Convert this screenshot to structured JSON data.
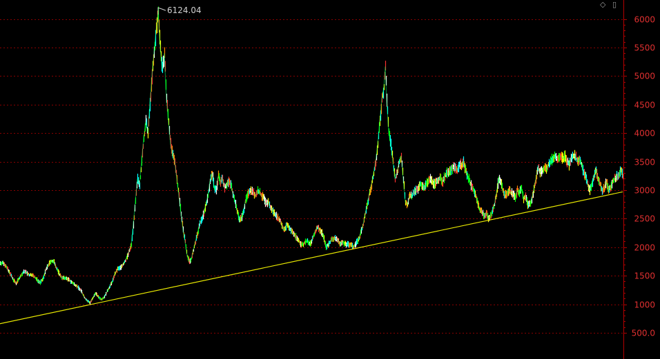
{
  "chart_data": {
    "type": "line",
    "title": "",
    "xlabel": "",
    "ylabel": "",
    "ylim": [
      350,
      6300
    ],
    "grid": true,
    "yticks": [
      {
        "value": 500,
        "label": "500.0"
      },
      {
        "value": 1000,
        "label": "1000"
      },
      {
        "value": 1500,
        "label": "1500"
      },
      {
        "value": 2000,
        "label": "2000"
      },
      {
        "value": 2500,
        "label": "2500"
      },
      {
        "value": 3000,
        "label": "3000"
      },
      {
        "value": 3500,
        "label": "3500"
      },
      {
        "value": 4000,
        "label": "4000"
      },
      {
        "value": 4500,
        "label": "4500"
      },
      {
        "value": 5000,
        "label": "5000"
      },
      {
        "value": 5500,
        "label": "5500"
      },
      {
        "value": 6000,
        "label": "6000"
      }
    ],
    "series": [
      {
        "points": [
          [
            0,
            1720
          ],
          [
            3,
            1730
          ],
          [
            8,
            1680
          ],
          [
            12,
            1580
          ],
          [
            16,
            1500
          ],
          [
            19,
            1420
          ],
          [
            23,
            1370
          ],
          [
            27,
            1450
          ],
          [
            31,
            1520
          ],
          [
            35,
            1580
          ],
          [
            38,
            1550
          ],
          [
            42,
            1510
          ],
          [
            46,
            1520
          ],
          [
            50,
            1470
          ],
          [
            54,
            1420
          ],
          [
            58,
            1380
          ],
          [
            62,
            1450
          ],
          [
            66,
            1600
          ],
          [
            70,
            1700
          ],
          [
            74,
            1760
          ],
          [
            78,
            1740
          ],
          [
            82,
            1620
          ],
          [
            86,
            1520
          ],
          [
            90,
            1460
          ],
          [
            94,
            1460
          ],
          [
            98,
            1440
          ],
          [
            102,
            1400
          ],
          [
            106,
            1360
          ],
          [
            110,
            1330
          ],
          [
            114,
            1280
          ],
          [
            118,
            1220
          ],
          [
            122,
            1120
          ],
          [
            126,
            1060
          ],
          [
            130,
            1030
          ],
          [
            134,
            1100
          ],
          [
            138,
            1200
          ],
          [
            142,
            1130
          ],
          [
            146,
            1090
          ],
          [
            150,
            1120
          ],
          [
            154,
            1200
          ],
          [
            158,
            1300
          ],
          [
            162,
            1390
          ],
          [
            166,
            1530
          ],
          [
            170,
            1620
          ],
          [
            174,
            1640
          ],
          [
            178,
            1700
          ],
          [
            182,
            1780
          ],
          [
            186,
            1900
          ],
          [
            190,
            2050
          ],
          [
            193,
            2400
          ],
          [
            196,
            2800
          ],
          [
            199,
            3200
          ],
          [
            202,
            3100
          ],
          [
            205,
            3500
          ],
          [
            208,
            3900
          ],
          [
            211,
            4200
          ],
          [
            214,
            4000
          ],
          [
            217,
            4500
          ],
          [
            220,
            5000
          ],
          [
            223,
            5400
          ],
          [
            226,
            5800
          ],
          [
            229,
            6124
          ],
          [
            232,
            5500
          ],
          [
            235,
            5100
          ],
          [
            238,
            5400
          ],
          [
            241,
            4600
          ],
          [
            244,
            4200
          ],
          [
            247,
            3800
          ],
          [
            250,
            3600
          ],
          [
            253,
            3500
          ],
          [
            256,
            3200
          ],
          [
            259,
            2900
          ],
          [
            262,
            2600
          ],
          [
            265,
            2300
          ],
          [
            268,
            2100
          ],
          [
            271,
            1850
          ],
          [
            274,
            1750
          ],
          [
            277,
            1800
          ],
          [
            280,
            1950
          ],
          [
            283,
            2100
          ],
          [
            286,
            2250
          ],
          [
            289,
            2400
          ],
          [
            292,
            2500
          ],
          [
            295,
            2600
          ],
          [
            298,
            2750
          ],
          [
            301,
            2900
          ],
          [
            304,
            3150
          ],
          [
            307,
            3300
          ],
          [
            310,
            3050
          ],
          [
            313,
            3000
          ],
          [
            316,
            3250
          ],
          [
            319,
            3150
          ],
          [
            322,
            3200
          ],
          [
            325,
            3050
          ],
          [
            328,
            3100
          ],
          [
            331,
            3150
          ],
          [
            334,
            3100
          ],
          [
            337,
            2950
          ],
          [
            340,
            2800
          ],
          [
            343,
            2650
          ],
          [
            346,
            2500
          ],
          [
            349,
            2500
          ],
          [
            352,
            2600
          ],
          [
            355,
            2800
          ],
          [
            358,
            2900
          ],
          [
            361,
            3000
          ],
          [
            364,
            3000
          ],
          [
            367,
            2950
          ],
          [
            370,
            2900
          ],
          [
            373,
            3000
          ],
          [
            376,
            2950
          ],
          [
            379,
            2900
          ],
          [
            382,
            2850
          ],
          [
            385,
            2750
          ],
          [
            388,
            2800
          ],
          [
            391,
            2700
          ],
          [
            394,
            2650
          ],
          [
            397,
            2600
          ],
          [
            400,
            2550
          ],
          [
            403,
            2500
          ],
          [
            406,
            2450
          ],
          [
            409,
            2350
          ],
          [
            412,
            2300
          ],
          [
            415,
            2400
          ],
          [
            418,
            2350
          ],
          [
            421,
            2300
          ],
          [
            424,
            2250
          ],
          [
            427,
            2200
          ],
          [
            430,
            2150
          ],
          [
            433,
            2100
          ],
          [
            436,
            2050
          ],
          [
            439,
            2050
          ],
          [
            442,
            2100
          ],
          [
            445,
            2100
          ],
          [
            448,
            2050
          ],
          [
            451,
            2100
          ],
          [
            454,
            2200
          ],
          [
            457,
            2300
          ],
          [
            460,
            2350
          ],
          [
            463,
            2300
          ],
          [
            466,
            2250
          ],
          [
            469,
            2150
          ],
          [
            472,
            2000
          ],
          [
            475,
            2050
          ],
          [
            478,
            2100
          ],
          [
            481,
            2150
          ],
          [
            484,
            2150
          ],
          [
            487,
            2150
          ],
          [
            490,
            2100
          ],
          [
            493,
            2050
          ],
          [
            496,
            2100
          ],
          [
            499,
            2050
          ],
          [
            502,
            2050
          ],
          [
            505,
            2050
          ],
          [
            508,
            2050
          ],
          [
            511,
            2000
          ],
          [
            514,
            2050
          ],
          [
            517,
            2100
          ],
          [
            520,
            2150
          ],
          [
            523,
            2300
          ],
          [
            526,
            2400
          ],
          [
            529,
            2600
          ],
          [
            532,
            2750
          ],
          [
            535,
            2950
          ],
          [
            538,
            3100
          ],
          [
            541,
            3300
          ],
          [
            544,
            3500
          ],
          [
            547,
            3800
          ],
          [
            550,
            4200
          ],
          [
            553,
            4600
          ],
          [
            556,
            4800
          ],
          [
            558,
            5166
          ],
          [
            560,
            4600
          ],
          [
            563,
            4000
          ],
          [
            566,
            3800
          ],
          [
            569,
            3500
          ],
          [
            572,
            3200
          ],
          [
            575,
            3300
          ],
          [
            578,
            3500
          ],
          [
            581,
            3600
          ],
          [
            584,
            3200
          ],
          [
            587,
            2800
          ],
          [
            590,
            2750
          ],
          [
            593,
            2900
          ],
          [
            596,
            2900
          ],
          [
            599,
            2950
          ],
          [
            602,
            3000
          ],
          [
            605,
            3000
          ],
          [
            608,
            3100
          ],
          [
            611,
            3100
          ],
          [
            614,
            3050
          ],
          [
            617,
            3100
          ],
          [
            620,
            3150
          ],
          [
            623,
            3200
          ],
          [
            626,
            3150
          ],
          [
            629,
            3100
          ],
          [
            632,
            3150
          ],
          [
            635,
            3200
          ],
          [
            638,
            3200
          ],
          [
            641,
            3150
          ],
          [
            644,
            3250
          ],
          [
            647,
            3300
          ],
          [
            650,
            3300
          ],
          [
            653,
            3350
          ],
          [
            656,
            3400
          ],
          [
            659,
            3400
          ],
          [
            662,
            3350
          ],
          [
            665,
            3450
          ],
          [
            668,
            3450
          ],
          [
            671,
            3500
          ],
          [
            674,
            3350
          ],
          [
            677,
            3250
          ],
          [
            680,
            3150
          ],
          [
            683,
            3050
          ],
          [
            686,
            3000
          ],
          [
            689,
            2900
          ],
          [
            692,
            2750
          ],
          [
            695,
            2650
          ],
          [
            698,
            2600
          ],
          [
            701,
            2550
          ],
          [
            704,
            2600
          ],
          [
            707,
            2500
          ],
          [
            710,
            2550
          ],
          [
            713,
            2650
          ],
          [
            716,
            2750
          ],
          [
            719,
            2950
          ],
          [
            722,
            3200
          ],
          [
            725,
            3150
          ],
          [
            728,
            3000
          ],
          [
            731,
            2900
          ],
          [
            734,
            2950
          ],
          [
            737,
            3000
          ],
          [
            740,
            2950
          ],
          [
            743,
            2950
          ],
          [
            746,
            2850
          ],
          [
            749,
            3000
          ],
          [
            752,
            2950
          ],
          [
            755,
            3050
          ],
          [
            758,
            2850
          ],
          [
            761,
            2900
          ],
          [
            764,
            2750
          ],
          [
            767,
            2750
          ],
          [
            770,
            2850
          ],
          [
            773,
            3000
          ],
          [
            776,
            3200
          ],
          [
            779,
            3400
          ],
          [
            782,
            3300
          ],
          [
            785,
            3350
          ],
          [
            788,
            3400
          ],
          [
            791,
            3350
          ],
          [
            794,
            3450
          ],
          [
            797,
            3500
          ],
          [
            800,
            3550
          ],
          [
            803,
            3600
          ],
          [
            806,
            3550
          ],
          [
            809,
            3600
          ],
          [
            812,
            3600
          ],
          [
            815,
            3550
          ],
          [
            818,
            3600
          ],
          [
            821,
            3500
          ],
          [
            824,
            3450
          ],
          [
            827,
            3550
          ],
          [
            830,
            3600
          ],
          [
            833,
            3600
          ],
          [
            836,
            3500
          ],
          [
            839,
            3550
          ],
          [
            842,
            3450
          ],
          [
            845,
            3300
          ],
          [
            848,
            3250
          ],
          [
            851,
            3100
          ],
          [
            854,
            3000
          ],
          [
            857,
            3100
          ],
          [
            860,
            3250
          ],
          [
            863,
            3350
          ],
          [
            866,
            3200
          ],
          [
            869,
            3100
          ],
          [
            872,
            3000
          ],
          [
            875,
            3050
          ],
          [
            878,
            3150
          ],
          [
            881,
            3000
          ],
          [
            884,
            3050
          ],
          [
            887,
            3150
          ],
          [
            890,
            3200
          ],
          [
            893,
            3250
          ],
          [
            896,
            3250
          ],
          [
            899,
            3350
          ],
          [
            902,
            3250
          ]
        ]
      }
    ],
    "trendline": {
      "start": [
        0,
        660
      ],
      "end": [
        902,
        2970
      ]
    },
    "annotations": [
      {
        "label": "6124.04",
        "x": 229,
        "value": 6124.04
      }
    ],
    "colors": {
      "background": "#000000",
      "axis": "#b40000",
      "grid": "#8a0000",
      "tick_text": "#e03030",
      "trendline": "#e8e800",
      "annotation_text": "#d0d0d0",
      "series_palette": [
        "#ffffff",
        "#ff3030",
        "#ffff00",
        "#00ff00",
        "#00ffff",
        "#ff8800"
      ]
    }
  },
  "toolbar": {
    "diamond_icon": "◇",
    "panel_icon": "▯"
  }
}
